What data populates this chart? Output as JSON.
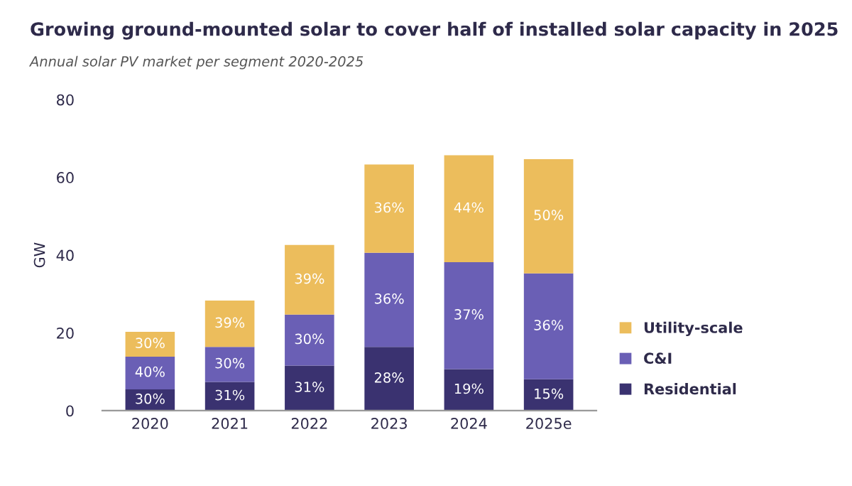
{
  "chart_data": {
    "type": "bar",
    "stacked": true,
    "title": "Growing ground-mounted solar to cover half of installed solar capacity in 2025",
    "subtitle": "Annual solar PV market per segment 2020-2025",
    "ylabel": "GW",
    "categories": [
      "2020",
      "2021",
      "2022",
      "2023",
      "2024",
      "2025e"
    ],
    "series": [
      {
        "name": "Residential",
        "color": "#3a3270",
        "values": [
          5.5,
          7.4,
          11.6,
          16.4,
          10.7,
          8.1
        ]
      },
      {
        "name": "C&I",
        "color": "#6a5fb5",
        "values": [
          8.4,
          9.0,
          13.1,
          24.2,
          27.5,
          27.2
        ]
      },
      {
        "name": "Utility-scale",
        "color": "#ecbd5c",
        "values": [
          6.4,
          11.9,
          17.9,
          22.7,
          27.5,
          29.4
        ]
      }
    ],
    "annotations": [
      "30%",
      "31%",
      "31%",
      "28%",
      "19%",
      "15%",
      "40%",
      "30%",
      "30%",
      "36%",
      "37%",
      "36%",
      "30%",
      "39%",
      "39%",
      "36%",
      "44%",
      "50%"
    ],
    "ylim": [
      0,
      80
    ],
    "yticks": [
      0,
      20,
      40,
      60,
      80
    ],
    "grid": false,
    "legend": "bottom right"
  }
}
